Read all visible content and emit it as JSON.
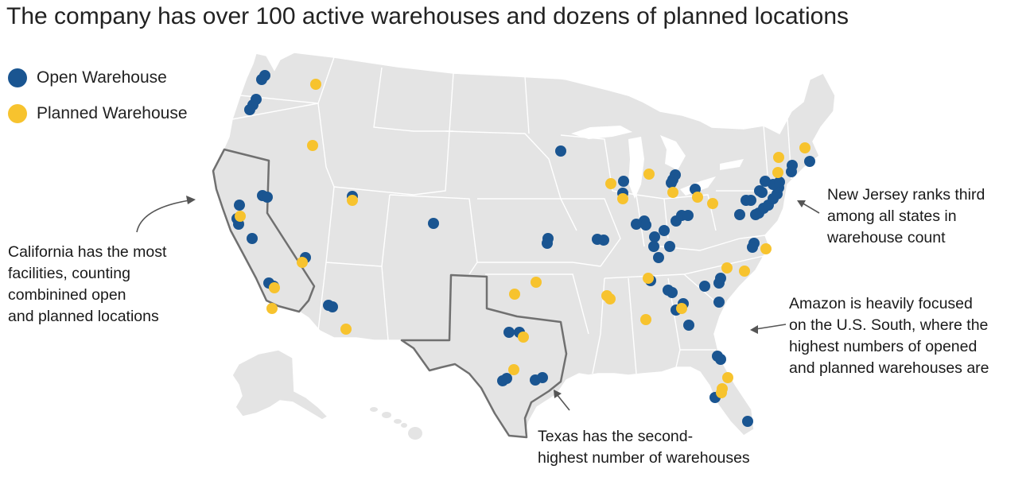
{
  "title": "The company has over 100 active warehouses and dozens of planned locations",
  "legend": [
    {
      "label": "Open Warehouse",
      "color": "#1a5591"
    },
    {
      "label": "Planned Warehouse",
      "color": "#f7c32e"
    }
  ],
  "map": {
    "region": "United States (with Alaska and Hawaii insets)",
    "land_color": "#e4e4e4",
    "border_color": "#ffffff",
    "highlight_outline_color": "#707070",
    "highlighted_states": [
      "California",
      "Texas"
    ]
  },
  "annotations": {
    "california": [
      "California has the most",
      "facilities, counting",
      "combinined open",
      "and planned locations"
    ],
    "new_jersey": [
      "New Jersey ranks third",
      "among all states in",
      "warehouse count"
    ],
    "south": [
      "Amazon is heavily focused",
      "on the U.S. South, where the",
      "highest numbers of opened",
      "and planned warehouses are"
    ],
    "texas": [
      "Texas has the second-",
      "highest number of warehouses"
    ]
  },
  "icons": {
    "arrow": "curved-arrow-icon"
  }
}
